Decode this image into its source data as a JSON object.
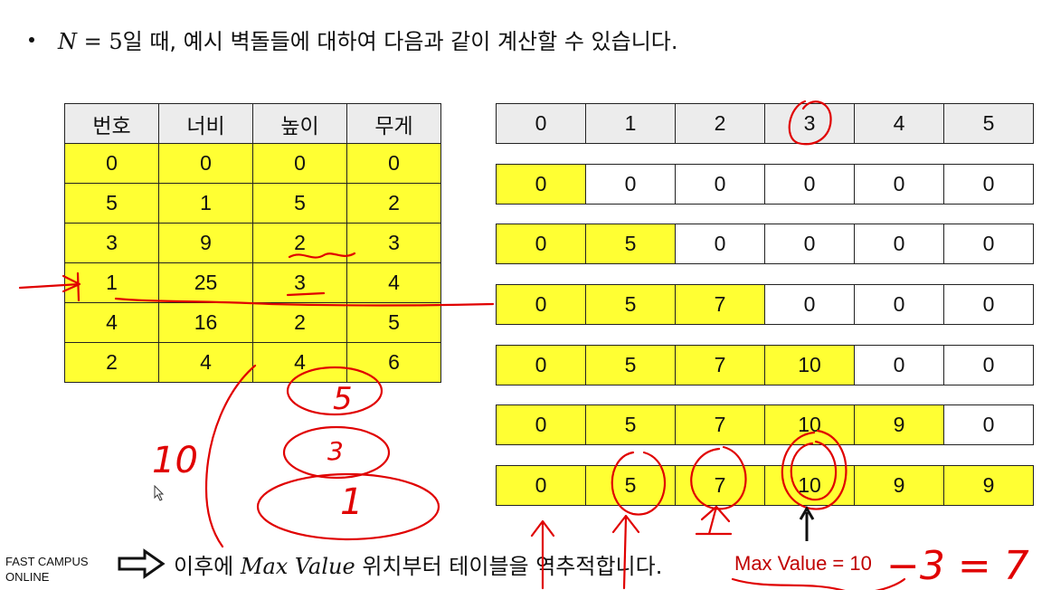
{
  "header": {
    "math_n": "N",
    "math_eq": " = 5",
    "text": "일 때, 예시 벽돌들에 대하여 다음과 같이 계산할 수 있습니다."
  },
  "brick_table": {
    "headers": [
      "번호",
      "너비",
      "높이",
      "무게"
    ],
    "rows": [
      [
        "0",
        "0",
        "0",
        "0"
      ],
      [
        "5",
        "1",
        "5",
        "2"
      ],
      [
        "3",
        "9",
        "2",
        "3"
      ],
      [
        "1",
        "25",
        "3",
        "4"
      ],
      [
        "4",
        "16",
        "2",
        "5"
      ],
      [
        "2",
        "4",
        "4",
        "6"
      ]
    ]
  },
  "dp_table": {
    "headers": [
      "0",
      "1",
      "2",
      "3",
      "4",
      "5"
    ],
    "rows": [
      [
        "0",
        "0",
        "0",
        "0",
        "0",
        "0"
      ],
      [
        "0",
        "5",
        "0",
        "0",
        "0",
        "0"
      ],
      [
        "0",
        "5",
        "7",
        "0",
        "0",
        "0"
      ],
      [
        "0",
        "5",
        "7",
        "10",
        "0",
        "0"
      ],
      [
        "0",
        "5",
        "7",
        "10",
        "9",
        "0"
      ],
      [
        "0",
        "5",
        "7",
        "10",
        "9",
        "9"
      ]
    ],
    "highlighted_cells_per_row": [
      1,
      2,
      3,
      4,
      5,
      6
    ]
  },
  "footer": {
    "brand_line1": "FAST CAMPUS",
    "brand_line2": "ONLINE",
    "text_prefix": "이후에 ",
    "math": "Max Value",
    "text_suffix": " 위치부터 테이블을 역추적합니다.",
    "max_value_label": "Max Value = 10"
  },
  "handwriting": {
    "ten": "10",
    "five": "5",
    "three": "3",
    "one": "1",
    "calc": "−3 = 7"
  },
  "colors": {
    "highlight": "#ffff33",
    "header_bg": "#ececec",
    "ink_red": "#e00000",
    "label_red": "#c00000"
  }
}
